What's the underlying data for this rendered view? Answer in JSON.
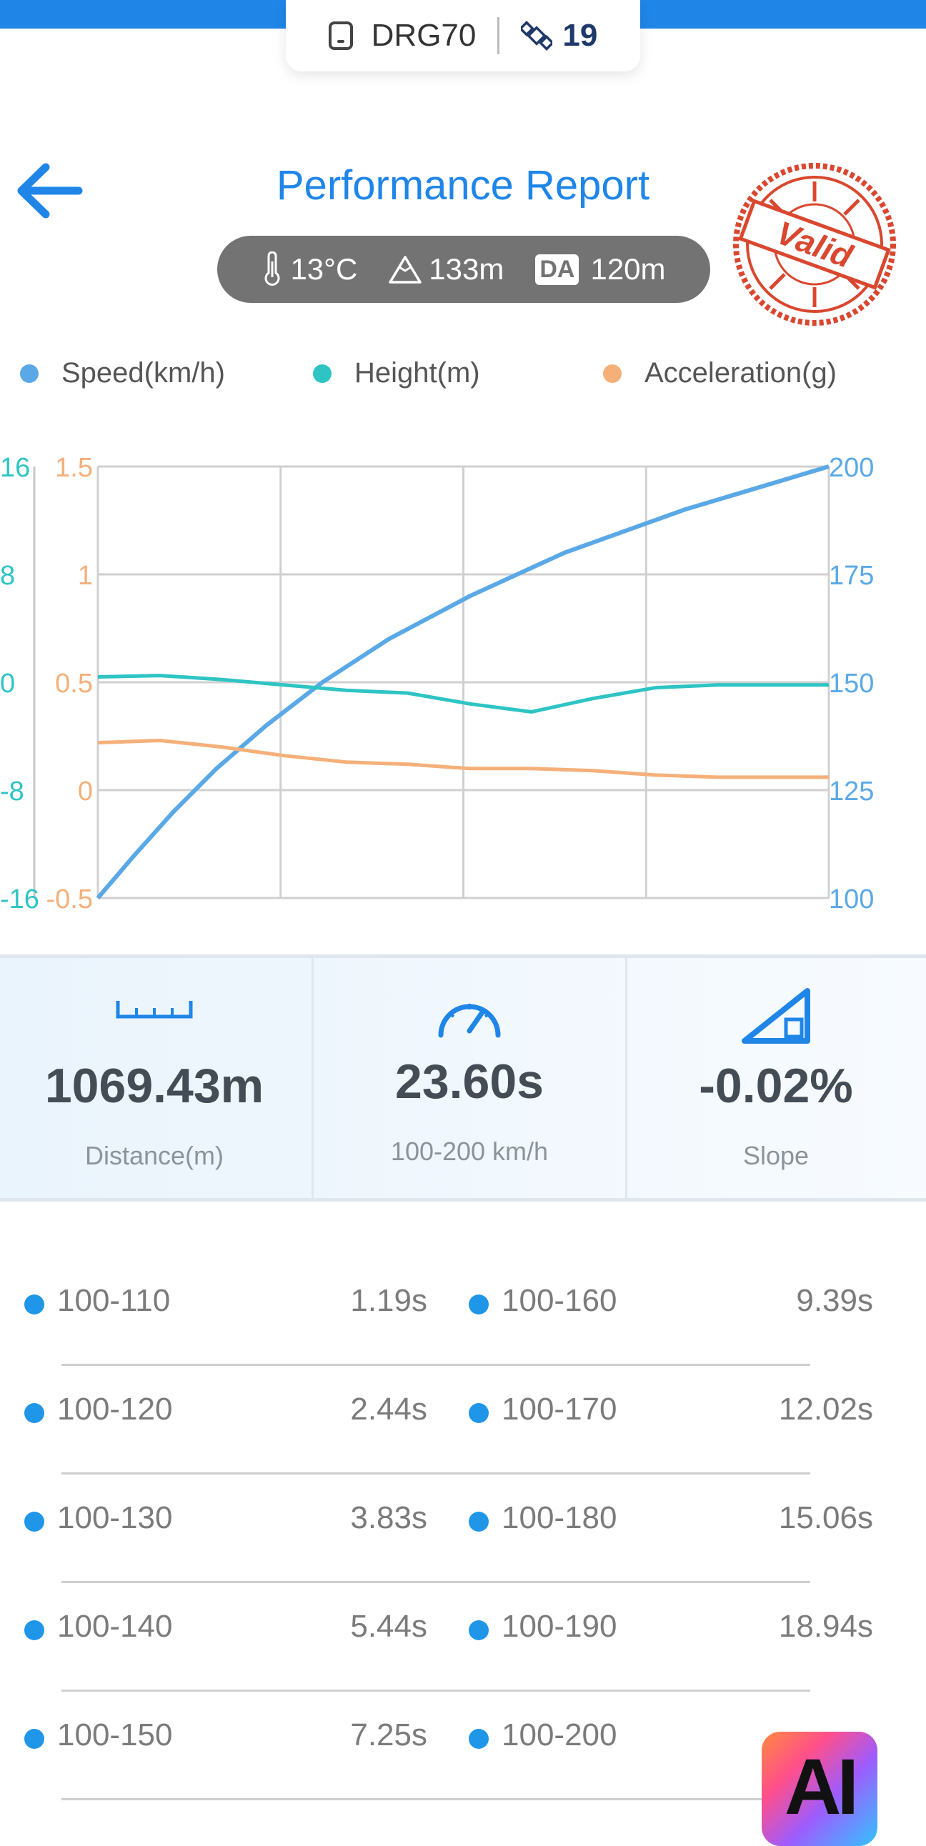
{
  "header": {
    "device_name": "DRG70",
    "satellites": "19",
    "title": "Performance Report",
    "stamp_text": "Valid"
  },
  "conditions": {
    "temperature": "13°C",
    "altitude": "133m",
    "da_label": "DA",
    "density_altitude": "120m"
  },
  "legend": [
    {
      "label": "Speed(km/h)",
      "color": "#5aa9e6"
    },
    {
      "label": "Height(m)",
      "color": "#2ec4c4"
    },
    {
      "label": "Acceleration(g)",
      "color": "#f5b07a"
    }
  ],
  "chart_data": {
    "type": "line",
    "x_range": [
      0,
      23.6
    ],
    "axes": {
      "height": {
        "ticks": [
          "16",
          "8",
          "0",
          "-8",
          "-16"
        ],
        "range": [
          -16,
          16
        ],
        "color": "#2ec4c4"
      },
      "acceleration": {
        "ticks": [
          "1.5",
          "1",
          "0.5",
          "0",
          "-0.5"
        ],
        "range": [
          -0.5,
          1.5
        ],
        "color": "#f5b07a"
      },
      "speed": {
        "ticks": [
          "200",
          "175",
          "150",
          "125",
          "100"
        ],
        "range": [
          100,
          200
        ],
        "color": "#5aa9e6"
      }
    },
    "series": [
      {
        "name": "Speed(km/h)",
        "axis": "speed",
        "color": "#5aa9e6",
        "x": [
          0,
          1.19,
          2.44,
          3.83,
          5.44,
          7.25,
          9.39,
          12.02,
          15.06,
          18.94,
          23.6
        ],
        "y": [
          100,
          110,
          120,
          130,
          140,
          150,
          160,
          170,
          180,
          190,
          200
        ]
      },
      {
        "name": "Height(m)",
        "axis": "height",
        "color": "#2ec4c4",
        "x": [
          0,
          2,
          4,
          6,
          8,
          10,
          12,
          14,
          16,
          18,
          20,
          22,
          23.6
        ],
        "y": [
          0.4,
          0.5,
          0.2,
          -0.2,
          -0.6,
          -0.8,
          -1.6,
          -2.2,
          -1.2,
          -0.4,
          -0.2,
          -0.2,
          -0.2
        ]
      },
      {
        "name": "Acceleration(g)",
        "axis": "acceleration",
        "color": "#f5b07a",
        "x": [
          0,
          2,
          4,
          6,
          8,
          10,
          12,
          14,
          16,
          18,
          20,
          22,
          23.6
        ],
        "y": [
          0.22,
          0.23,
          0.2,
          0.16,
          0.13,
          0.12,
          0.1,
          0.1,
          0.09,
          0.07,
          0.06,
          0.06,
          0.06
        ]
      }
    ],
    "grid": true
  },
  "stats": [
    {
      "value": "1069.43m",
      "label": "Distance(m)",
      "icon": "ruler-icon"
    },
    {
      "value": "23.60s",
      "label": "100-200 km/h",
      "icon": "speedometer-icon"
    },
    {
      "value": "-0.02%",
      "label": "Slope",
      "icon": "slope-icon"
    }
  ],
  "splits": [
    {
      "range_left": "100-110",
      "time_left": "1.19s",
      "range_right": "100-160",
      "time_right": "9.39s"
    },
    {
      "range_left": "100-120",
      "time_left": "2.44s",
      "range_right": "100-170",
      "time_right": "12.02s"
    },
    {
      "range_left": "100-130",
      "time_left": "3.83s",
      "range_right": "100-180",
      "time_right": "15.06s"
    },
    {
      "range_left": "100-140",
      "time_left": "5.44s",
      "range_right": "100-190",
      "time_right": "18.94s"
    },
    {
      "range_left": "100-150",
      "time_left": "7.25s",
      "range_right": "100-200",
      "time_right": ""
    }
  ],
  "ai_button": "AI"
}
